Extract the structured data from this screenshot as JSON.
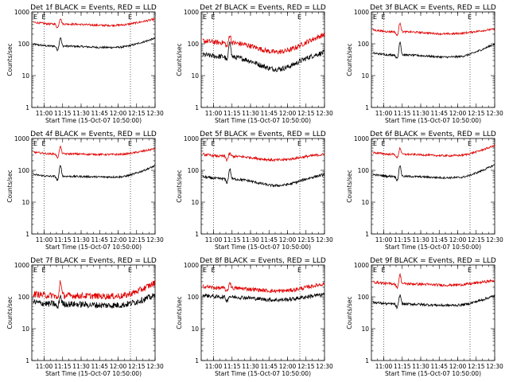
{
  "colors": {
    "events": "#000000",
    "lld": "#e00000"
  },
  "panel_params": [
    {
      "ev": 85,
      "ld": 420,
      "ev_peak": 160,
      "ld_peak": 640,
      "ev_dip_mid": 0.9,
      "ld_dip_mid": 0.9,
      "ev_end": 150,
      "ld_end": 600,
      "noise": 0.03,
      "bump_t": 11.22
    },
    {
      "ev": 40,
      "ld": 110,
      "ev_peak": 140,
      "ld_peak": 200,
      "ev_dip_mid": 0.4,
      "ld_dip_mid": 0.5,
      "ev_end": 55,
      "ld_end": 200,
      "noise": 0.08,
      "bump_t": 11.22
    },
    {
      "ev": 45,
      "ld": 240,
      "ev_peak": 120,
      "ld_peak": 470,
      "ev_dip_mid": 0.85,
      "ld_dip_mid": 0.85,
      "ev_end": 100,
      "ld_end": 290,
      "noise": 0.03,
      "bump_t": 11.22
    },
    {
      "ev": 65,
      "ld": 330,
      "ev_peak": 150,
      "ld_peak": 560,
      "ev_dip_mid": 0.95,
      "ld_dip_mid": 0.95,
      "ev_end": 140,
      "ld_end": 480,
      "noise": 0.03,
      "bump_t": 11.22
    },
    {
      "ev": 55,
      "ld": 280,
      "ev_peak": 115,
      "ld_peak": 340,
      "ev_dip_mid": 0.6,
      "ld_dip_mid": 0.75,
      "ev_end": 75,
      "ld_end": 320,
      "noise": 0.04,
      "bump_t": 11.22
    },
    {
      "ev": 65,
      "ld": 320,
      "ev_peak": 145,
      "ld_peak": 510,
      "ev_dip_mid": 0.9,
      "ld_dip_mid": 0.9,
      "ev_end": 150,
      "ld_end": 600,
      "noise": 0.03,
      "bump_t": 11.22
    },
    {
      "ev": 60,
      "ld": 110,
      "ev_peak": 110,
      "ld_peak": 330,
      "ev_dip_mid": 0.9,
      "ld_dip_mid": 0.95,
      "ev_end": 110,
      "ld_end": 280,
      "noise": 0.1,
      "bump_t": 11.22
    },
    {
      "ev": 100,
      "ld": 190,
      "ev_peak": 105,
      "ld_peak": 290,
      "ev_dip_mid": 0.8,
      "ld_dip_mid": 0.8,
      "ev_end": 120,
      "ld_end": 260,
      "noise": 0.06,
      "bump_t": 11.22
    },
    {
      "ev": 60,
      "ld": 260,
      "ev_peak": 115,
      "ld_peak": 500,
      "ev_dip_mid": 0.9,
      "ld_dip_mid": 0.9,
      "ev_end": 110,
      "ld_end": 330,
      "noise": 0.04,
      "bump_t": 11.22
    }
  ],
  "chart_data": [
    {
      "type": "line",
      "title": "Det 1f BLACK = Events, RED = LLD",
      "xlabel": "Start Time (15-Oct-07 10:50:00)",
      "ylabel": "Counts/sec",
      "yscale": "log",
      "ylim": [
        1,
        1000
      ],
      "xlim": [
        "10:50",
        "12:30"
      ],
      "xticks": [
        "11:00",
        "11:15",
        "11:30",
        "11:45",
        "12:00",
        "12:15",
        "12:30"
      ],
      "yticks": [
        "1",
        "10",
        "100",
        "1000"
      ],
      "markers": [
        {
          "time": "11:00",
          "label": "E"
        },
        {
          "time": "12:10",
          "label": "E"
        }
      ],
      "series": [
        {
          "name": "Events",
          "color": "#000000"
        },
        {
          "name": "LLD",
          "color": "#e00000"
        }
      ]
    },
    {
      "type": "line",
      "title": "Det 2f BLACK = Events, RED = LLD",
      "xlabel": "Start Time (15-Oct-07 10:50:00)",
      "ylabel": "Counts/sec",
      "yscale": "log",
      "ylim": [
        1,
        1000
      ],
      "xlim": [
        "10:50",
        "12:30"
      ],
      "xticks": [
        "11:00",
        "11:15",
        "11:30",
        "11:45",
        "12:00",
        "12:15",
        "12:30"
      ],
      "yticks": [
        "1",
        "10",
        "100",
        "1000"
      ],
      "markers": [
        {
          "time": "11:00",
          "label": "E"
        },
        {
          "time": "12:10",
          "label": "E"
        }
      ],
      "series": [
        {
          "name": "Events",
          "color": "#000000"
        },
        {
          "name": "LLD",
          "color": "#e00000"
        }
      ]
    },
    {
      "type": "line",
      "title": "Det 3f BLACK = Events, RED = LLD",
      "xlabel": "Start Time (15-Oct-07 10:50:00)",
      "ylabel": "Counts/sec",
      "yscale": "log",
      "ylim": [
        1,
        1000
      ],
      "xlim": [
        "10:50",
        "12:30"
      ],
      "xticks": [
        "11:00",
        "11:15",
        "11:30",
        "11:45",
        "12:00",
        "12:15",
        "12:30"
      ],
      "yticks": [
        "1",
        "10",
        "100",
        "1000"
      ],
      "markers": [
        {
          "time": "11:00",
          "label": "E"
        },
        {
          "time": "12:10",
          "label": "E"
        }
      ],
      "series": [
        {
          "name": "Events",
          "color": "#000000"
        },
        {
          "name": "LLD",
          "color": "#e00000"
        }
      ]
    },
    {
      "type": "line",
      "title": "Det 4f BLACK = Events, RED = LLD",
      "xlabel": "Start Time (15-Oct-07 10:50:00)",
      "ylabel": "Counts/sec",
      "yscale": "log",
      "ylim": [
        1,
        1000
      ],
      "xlim": [
        "10:50",
        "12:30"
      ],
      "xticks": [
        "11:00",
        "11:15",
        "11:30",
        "11:45",
        "12:00",
        "12:15",
        "12:30"
      ],
      "yticks": [
        "1",
        "10",
        "100",
        "1000"
      ],
      "markers": [
        {
          "time": "11:00",
          "label": "E"
        },
        {
          "time": "12:10",
          "label": "E"
        }
      ],
      "series": [
        {
          "name": "Events",
          "color": "#000000"
        },
        {
          "name": "LLD",
          "color": "#e00000"
        }
      ]
    },
    {
      "type": "line",
      "title": "Det 5f BLACK = Events, RED = LLD",
      "xlabel": "Start Time (15-Oct-07 10:50:00)",
      "ylabel": "Counts/sec",
      "yscale": "log",
      "ylim": [
        1,
        1000
      ],
      "xlim": [
        "10:50",
        "12:30"
      ],
      "xticks": [
        "11:00",
        "11:15",
        "11:30",
        "11:45",
        "12:00",
        "12:15",
        "12:30"
      ],
      "yticks": [
        "1",
        "10",
        "100",
        "1000"
      ],
      "markers": [
        {
          "time": "11:00",
          "label": "E"
        },
        {
          "time": "12:10",
          "label": "E"
        }
      ],
      "series": [
        {
          "name": "Events",
          "color": "#000000"
        },
        {
          "name": "LLD",
          "color": "#e00000"
        }
      ]
    },
    {
      "type": "line",
      "title": "Det 6f BLACK = Events, RED = LLD",
      "xlabel": "Start Time (15-Oct-07 10:50:00)",
      "ylabel": "Counts/sec",
      "yscale": "log",
      "ylim": [
        1,
        1000
      ],
      "xlim": [
        "10:50",
        "12:30"
      ],
      "xticks": [
        "11:00",
        "11:15",
        "11:30",
        "11:45",
        "12:00",
        "12:15",
        "12:30"
      ],
      "yticks": [
        "1",
        "10",
        "100",
        "1000"
      ],
      "markers": [
        {
          "time": "11:00",
          "label": "E"
        },
        {
          "time": "12:10",
          "label": "E"
        }
      ],
      "series": [
        {
          "name": "Events",
          "color": "#000000"
        },
        {
          "name": "LLD",
          "color": "#e00000"
        }
      ]
    },
    {
      "type": "line",
      "title": "Det 7f BLACK = Events, RED = LLD",
      "xlabel": "Start Time (15-Oct-07 10:50:00)",
      "ylabel": "Counts/sec",
      "yscale": "log",
      "ylim": [
        1,
        1000
      ],
      "xlim": [
        "10:50",
        "12:30"
      ],
      "xticks": [
        "11:00",
        "11:15",
        "11:30",
        "11:45",
        "12:00",
        "12:15",
        "12:30"
      ],
      "yticks": [
        "1",
        "10",
        "100",
        "1000"
      ],
      "markers": [
        {
          "time": "11:00",
          "label": "E"
        },
        {
          "time": "12:10",
          "label": "E"
        }
      ],
      "series": [
        {
          "name": "Events",
          "color": "#000000"
        },
        {
          "name": "LLD",
          "color": "#e00000"
        }
      ]
    },
    {
      "type": "line",
      "title": "Det 8f BLACK = Events, RED = LLD",
      "xlabel": "Start Time (15-Oct-07 10:50:00)",
      "ylabel": "Counts/sec",
      "yscale": "log",
      "ylim": [
        1,
        1000
      ],
      "xlim": [
        "10:50",
        "12:30"
      ],
      "xticks": [
        "11:00",
        "11:15",
        "11:30",
        "11:45",
        "12:00",
        "12:15",
        "12:30"
      ],
      "yticks": [
        "1",
        "10",
        "100",
        "1000"
      ],
      "markers": [
        {
          "time": "11:00",
          "label": "E"
        },
        {
          "time": "12:10",
          "label": "E"
        }
      ],
      "series": [
        {
          "name": "Events",
          "color": "#000000"
        },
        {
          "name": "LLD",
          "color": "#e00000"
        }
      ]
    },
    {
      "type": "line",
      "title": "Det 9f BLACK = Events, RED = LLD",
      "xlabel": "Start Time (15-Oct-07 10:50:00)",
      "ylabel": "Counts/sec",
      "yscale": "log",
      "ylim": [
        1,
        1000
      ],
      "xlim": [
        "10:50",
        "12:30"
      ],
      "xticks": [
        "11:00",
        "11:15",
        "11:30",
        "11:45",
        "12:00",
        "12:15",
        "12:30"
      ],
      "yticks": [
        "1",
        "10",
        "100",
        "1000"
      ],
      "markers": [
        {
          "time": "11:00",
          "label": "E"
        },
        {
          "time": "12:10",
          "label": "E"
        }
      ],
      "series": [
        {
          "name": "Events",
          "color": "#000000"
        },
        {
          "name": "LLD",
          "color": "#e00000"
        }
      ]
    }
  ]
}
